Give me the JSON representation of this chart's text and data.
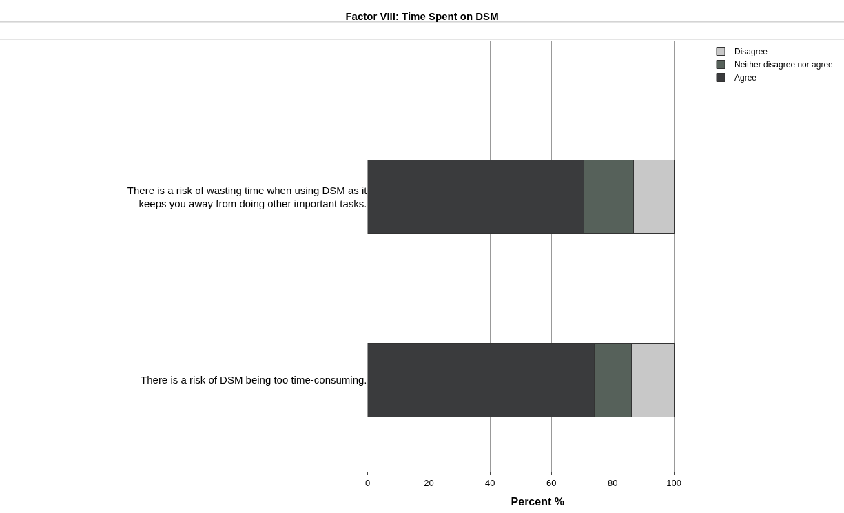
{
  "chart_data": {
    "type": "bar",
    "orientation": "horizontal",
    "stacked": true,
    "title": "Factor VIII: Time Spent on DSM",
    "xlabel": "Percent %",
    "categories": [
      "There is a risk of wasting time when using DSM as it keeps you away from doing other important tasks.",
      "There is a risk of DSM being too time-consuming."
    ],
    "series": [
      {
        "name": "Agree",
        "color": "#3a3b3d",
        "values": [
          70.7,
          73.9
        ]
      },
      {
        "name": "Neither disagree nor agree",
        "color": "#56615a",
        "values": [
          16.1,
          12.2
        ]
      },
      {
        "name": "Disagree",
        "color": "#c8c8c8",
        "values": [
          13.2,
          13.9
        ]
      }
    ],
    "xlim": [
      0,
      111
    ],
    "xticks": [
      0,
      20,
      40,
      60,
      80,
      100
    ],
    "grid": "x",
    "legend": "top right"
  }
}
